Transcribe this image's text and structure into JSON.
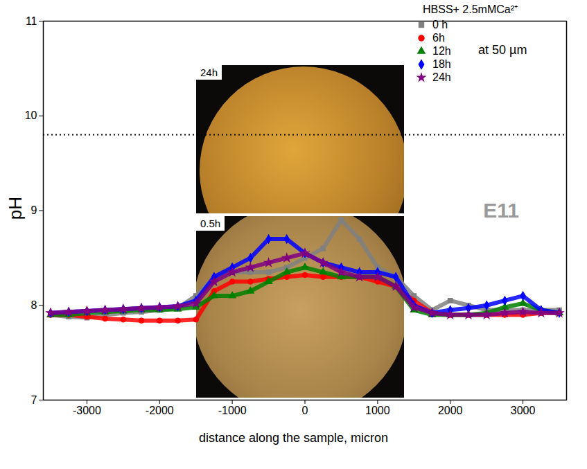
{
  "chart_data": {
    "type": "line",
    "x_label": "distance along the sample, micron",
    "y_label": "pH",
    "xlim": [
      -3600,
      3600
    ],
    "xticks": [
      -3000,
      -2000,
      -1000,
      0,
      1000,
      2000,
      3000
    ],
    "ylim": [
      7,
      11
    ],
    "yticks": [
      7,
      8,
      9,
      10,
      11
    ],
    "legend": "top-right",
    "legend_title": "HBSS+ 2.5mMCa²⁺",
    "legend_note": "at 50 µm",
    "reference_y": 9.8,
    "annotations": [
      {
        "text": "E11",
        "x": 2700,
        "y": 9.0
      }
    ],
    "inset_labels": [
      "24h",
      "0.5h"
    ],
    "x": [
      -3500,
      -3250,
      -3000,
      -2750,
      -2500,
      -2250,
      -2000,
      -1750,
      -1500,
      -1250,
      -1000,
      -750,
      -500,
      -250,
      0,
      250,
      500,
      750,
      1000,
      1250,
      1500,
      1750,
      2000,
      2250,
      2500,
      2750,
      3000,
      3250,
      3500
    ],
    "series": [
      {
        "name": "0 h",
        "color": "#808080",
        "marker": "square",
        "values": [
          7.9,
          7.88,
          7.87,
          7.9,
          7.92,
          7.93,
          7.95,
          7.97,
          8.1,
          8.3,
          8.35,
          8.35,
          8.35,
          8.4,
          8.5,
          8.6,
          8.9,
          8.7,
          8.4,
          8.3,
          8.1,
          7.95,
          8.05,
          8.0,
          7.95,
          7.95,
          7.95,
          7.95,
          7.95
        ]
      },
      {
        "name": "6h",
        "color": "#ff0000",
        "marker": "circle",
        "values": [
          7.9,
          7.9,
          7.88,
          7.86,
          7.85,
          7.84,
          7.84,
          7.84,
          7.85,
          8.15,
          8.25,
          8.25,
          8.28,
          8.3,
          8.32,
          8.3,
          8.3,
          8.3,
          8.25,
          8.2,
          8.05,
          7.92,
          7.9,
          7.9,
          7.9,
          7.9,
          7.9,
          7.92,
          7.92
        ]
      },
      {
        "name": "12h",
        "color": "#008000",
        "marker": "triangle",
        "values": [
          7.9,
          7.9,
          7.92,
          7.93,
          7.94,
          7.95,
          7.95,
          7.96,
          7.98,
          8.1,
          8.1,
          8.15,
          8.25,
          8.35,
          8.4,
          8.35,
          8.3,
          8.3,
          8.3,
          8.2,
          7.95,
          7.9,
          7.9,
          7.9,
          7.92,
          7.98,
          8.02,
          7.95,
          7.92
        ]
      },
      {
        "name": "18h",
        "color": "#0000ff",
        "marker": "diamond",
        "values": [
          7.92,
          7.93,
          7.94,
          7.95,
          7.96,
          7.97,
          7.98,
          7.99,
          8.05,
          8.3,
          8.4,
          8.5,
          8.7,
          8.7,
          8.55,
          8.45,
          8.4,
          8.35,
          8.35,
          8.3,
          8.0,
          7.92,
          7.95,
          7.97,
          8.0,
          8.05,
          8.1,
          7.95,
          7.92
        ]
      },
      {
        "name": "24h",
        "color": "#800080",
        "marker": "star",
        "values": [
          7.92,
          7.93,
          7.94,
          7.95,
          7.96,
          7.97,
          7.98,
          7.99,
          8.02,
          8.25,
          8.35,
          8.4,
          8.45,
          8.5,
          8.55,
          8.45,
          8.35,
          8.3,
          8.3,
          8.2,
          7.98,
          7.92,
          7.9,
          7.9,
          7.9,
          7.92,
          7.93,
          7.92,
          7.92
        ]
      }
    ]
  }
}
